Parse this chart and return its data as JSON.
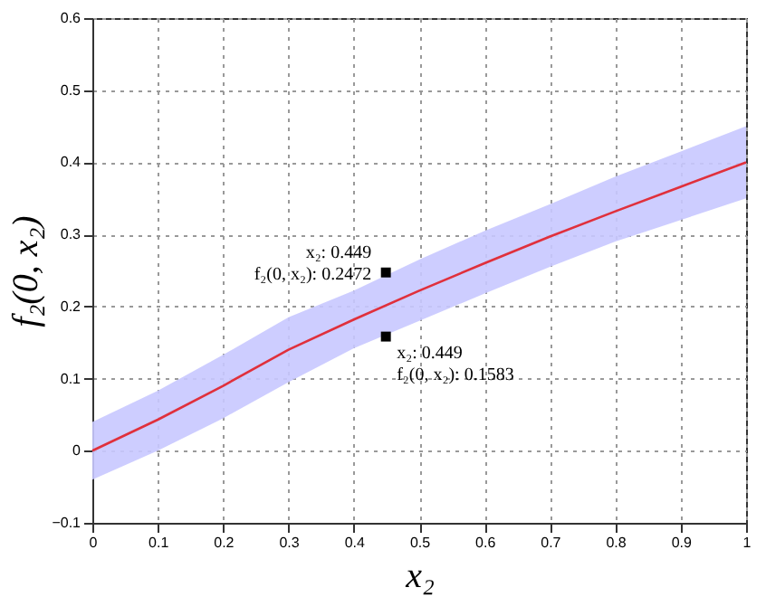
{
  "chart_data": {
    "type": "line",
    "xlabel": "x₂",
    "ylabel": "f₂(0, x₂)",
    "x": [
      0,
      0.1,
      0.2,
      0.3,
      0.4,
      0.5,
      0.6,
      0.7,
      0.8,
      0.9,
      1
    ],
    "series": [
      {
        "color": "#e0303c",
        "values": [
          0,
          0.043,
          0.09,
          0.14,
          0.182,
          0.222,
          0.26,
          0.297,
          0.332,
          0.366,
          0.4
        ],
        "lower": [
          -0.04,
          0.0,
          0.045,
          0.095,
          0.142,
          0.18,
          0.218,
          0.255,
          0.29,
          0.32,
          0.35
        ],
        "upper": [
          0.04,
          0.083,
          0.133,
          0.185,
          0.222,
          0.265,
          0.305,
          0.342,
          0.38,
          0.415,
          0.45
        ]
      }
    ],
    "annotations": [
      {
        "text": "x₂: 0.449\nf₂(0, x₂): 0.2472",
        "x": 0.449,
        "y": 0.2472
      },
      {
        "text": "x₂: 0.449\nf₂(0, x₂): 0.1583",
        "x": 0.449,
        "y": 0.1583
      }
    ],
    "xlim": [
      0,
      1
    ],
    "ylim": [
      -0.1,
      0.6
    ],
    "xticks": [
      0,
      0.1,
      0.2,
      0.3,
      0.4,
      0.5,
      0.6,
      0.7,
      0.8,
      0.9,
      1
    ],
    "yticks": [
      -0.1,
      0,
      0.1,
      0.2,
      0.3,
      0.4,
      0.5,
      0.6
    ],
    "grid": true,
    "line_style": "solid",
    "marker": "none"
  }
}
